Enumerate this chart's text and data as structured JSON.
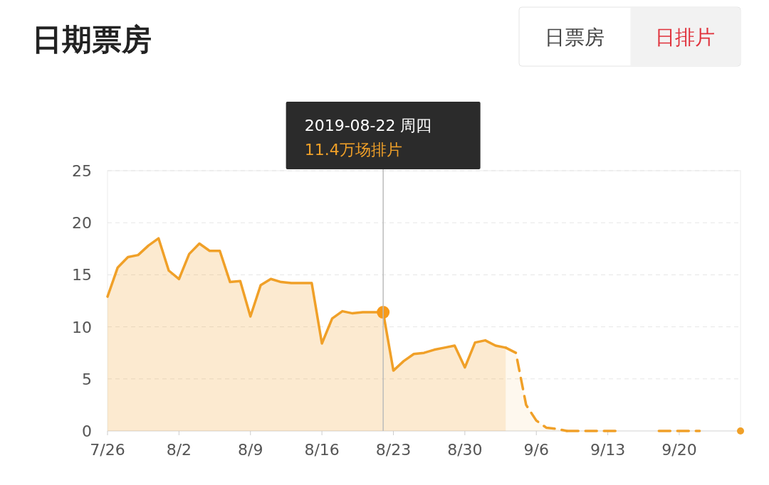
{
  "chart_data": {
    "type": "area",
    "title": "日期票房",
    "annotations": [
      "日票房",
      "日排片",
      "2019-08-22 周四",
      "11.4万场排片"
    ],
    "series": [
      {
        "color": "#f0a028",
        "line_style": "solid",
        "x": [
          "2019-07-26",
          "2019-07-27",
          "2019-07-28",
          "2019-07-29",
          "2019-07-30",
          "2019-07-31",
          "2019-08-01",
          "2019-08-02",
          "2019-08-03",
          "2019-08-04",
          "2019-08-05",
          "2019-08-06",
          "2019-08-07",
          "2019-08-08",
          "2019-08-09",
          "2019-08-10",
          "2019-08-11",
          "2019-08-12",
          "2019-08-13",
          "2019-08-14",
          "2019-08-15",
          "2019-08-16",
          "2019-08-17",
          "2019-08-18",
          "2019-08-19",
          "2019-08-20",
          "2019-08-21",
          "2019-08-22",
          "2019-08-23",
          "2019-08-24",
          "2019-08-25",
          "2019-08-26",
          "2019-08-27",
          "2019-08-28",
          "2019-08-29",
          "2019-08-30",
          "2019-08-31",
          "2019-09-01",
          "2019-09-02",
          "2019-09-03"
        ],
        "values": [
          12.9,
          15.7,
          16.7,
          16.9,
          17.8,
          18.5,
          15.4,
          14.6,
          17.0,
          18.0,
          17.3,
          17.3,
          14.3,
          14.4,
          11.0,
          14.0,
          14.6,
          14.3,
          14.2,
          14.2,
          14.2,
          8.4,
          10.8,
          11.5,
          11.3,
          11.4,
          11.4,
          11.4,
          5.8,
          6.7,
          7.4,
          7.5,
          7.8,
          8.0,
          8.2,
          6.1,
          8.5,
          8.7,
          8.2,
          8.0
        ]
      },
      {
        "color": "#f0a028",
        "line_style": "dashed",
        "x": [
          "2019-09-03",
          "2019-09-04",
          "2019-09-05",
          "2019-09-06",
          "2019-09-07",
          "2019-09-08",
          "2019-09-09"
        ],
        "values": [
          8.0,
          7.5,
          2.5,
          1.0,
          0.3,
          0.2,
          0
        ]
      },
      {
        "type": "line",
        "color": "#f0a028",
        "line_style": "dashed",
        "x": [
          "2019-09-09",
          "2019-09-10",
          "2019-09-11",
          "2019-09-12",
          "2019-09-13",
          "2019-09-14",
          "2019-09-15",
          "2019-09-16",
          "2019-09-17",
          "2019-09-18",
          "2019-09-19",
          "2019-09-20",
          "2019-09-21",
          "2019-09-22",
          "2019-09-23",
          "2019-09-24",
          "2019-09-25",
          "2019-09-26"
        ],
        "values": [
          0,
          0,
          0,
          0,
          0,
          0,
          null,
          null,
          null,
          0,
          0,
          0,
          0,
          0,
          null,
          null,
          null,
          0
        ]
      },
      {
        "type": "scatter",
        "color": "#f79a1a",
        "marker": "circle",
        "x": [
          "2019-08-22"
        ],
        "values": [
          11.4
        ]
      }
    ],
    "xlim": [
      "2019-07-26",
      "2019-09-26"
    ],
    "xticks": [
      {
        "value": "2019-07-26",
        "label": "7/26"
      },
      {
        "value": "2019-08-02",
        "label": "8/2"
      },
      {
        "value": "2019-08-09",
        "label": "8/9"
      },
      {
        "value": "2019-08-16",
        "label": "8/16"
      },
      {
        "value": "2019-08-23",
        "label": "8/23"
      },
      {
        "value": "2019-08-30",
        "label": "8/30"
      },
      {
        "value": "2019-09-06",
        "label": "9/6"
      },
      {
        "value": "2019-09-13",
        "label": "9/13"
      },
      {
        "value": "2019-09-20",
        "label": "9/20"
      }
    ],
    "ylim": [
      0,
      25
    ],
    "yticks": [
      0,
      5,
      10,
      15,
      20,
      25
    ],
    "grid": "y",
    "ref_lines": [
      {
        "axis": "x",
        "value": "2019-08-22",
        "color": "#bbbbbb"
      }
    ]
  }
}
